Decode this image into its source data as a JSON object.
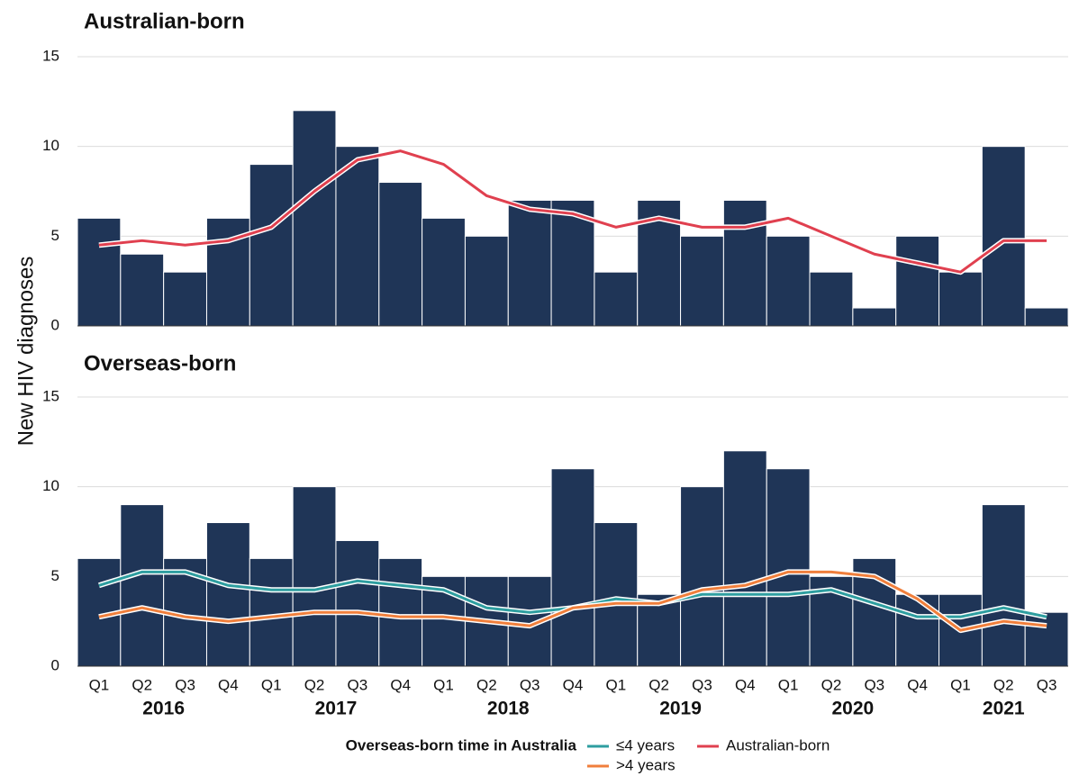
{
  "chart_data": [
    {
      "type": "bar",
      "title": "Australian-born",
      "y_label": "New HIV diagnoses",
      "color": "#1f3557",
      "values": [
        6,
        4,
        3,
        6,
        9,
        12,
        10,
        8,
        6,
        5,
        7,
        7,
        3,
        7,
        5,
        7,
        5,
        3,
        1,
        5,
        3,
        10,
        1
      ],
      "lines": [
        {
          "name": "Australian-born",
          "color": "#e0404f",
          "values": [
            4.5,
            4.75,
            4.5,
            4.75,
            5.5,
            7.5,
            9.25,
            9.75,
            9,
            7.25,
            6.5,
            6.25,
            5.5,
            6,
            5.5,
            5.5,
            6,
            5,
            4,
            3.5,
            3,
            4.75,
            4.75
          ]
        }
      ],
      "ylim": [
        0,
        15
      ],
      "yticks": [
        0,
        5,
        10,
        15
      ],
      "grid": true
    },
    {
      "type": "bar",
      "title": "Overseas-born",
      "color": "#1f3557",
      "categories": [
        "Q1",
        "Q2",
        "Q3",
        "Q4",
        "Q1",
        "Q2",
        "Q3",
        "Q4",
        "Q1",
        "Q2",
        "Q3",
        "Q4",
        "Q1",
        "Q2",
        "Q3",
        "Q4",
        "Q1",
        "Q2",
        "Q3",
        "Q4",
        "Q1",
        "Q2",
        "Q3"
      ],
      "years": [
        "2016",
        "2017",
        "2018",
        "2019",
        "2020",
        "2021"
      ],
      "values": [
        6,
        9,
        6,
        8,
        6,
        10,
        7,
        6,
        5,
        5,
        5,
        11,
        8,
        4,
        10,
        12,
        11,
        5,
        6,
        4,
        4,
        9,
        3
      ],
      "legend_title": "Overseas-born time in Australia",
      "lines": [
        {
          "name": "≤4 years",
          "color": "#2e9ea0",
          "values": [
            4.5,
            5.25,
            5.25,
            4.5,
            4.25,
            4.25,
            4.75,
            4.5,
            4.25,
            3.25,
            3,
            3.25,
            3.75,
            3.5,
            4,
            4,
            4,
            4.25,
            3.5,
            2.75,
            2.75,
            3.25,
            2.75
          ]
        },
        {
          "name": ">4 years",
          "color": "#f07f3c",
          "values": [
            2.75,
            3.25,
            2.75,
            2.5,
            2.75,
            3,
            3,
            2.75,
            2.75,
            2.5,
            2.25,
            3.25,
            3.5,
            3.5,
            4.25,
            4.5,
            5.25,
            5.25,
            5,
            3.75,
            2,
            2.5,
            2.25
          ]
        }
      ],
      "ylim": [
        0,
        15
      ],
      "yticks": [
        0,
        5,
        10,
        15
      ],
      "grid": true
    }
  ]
}
